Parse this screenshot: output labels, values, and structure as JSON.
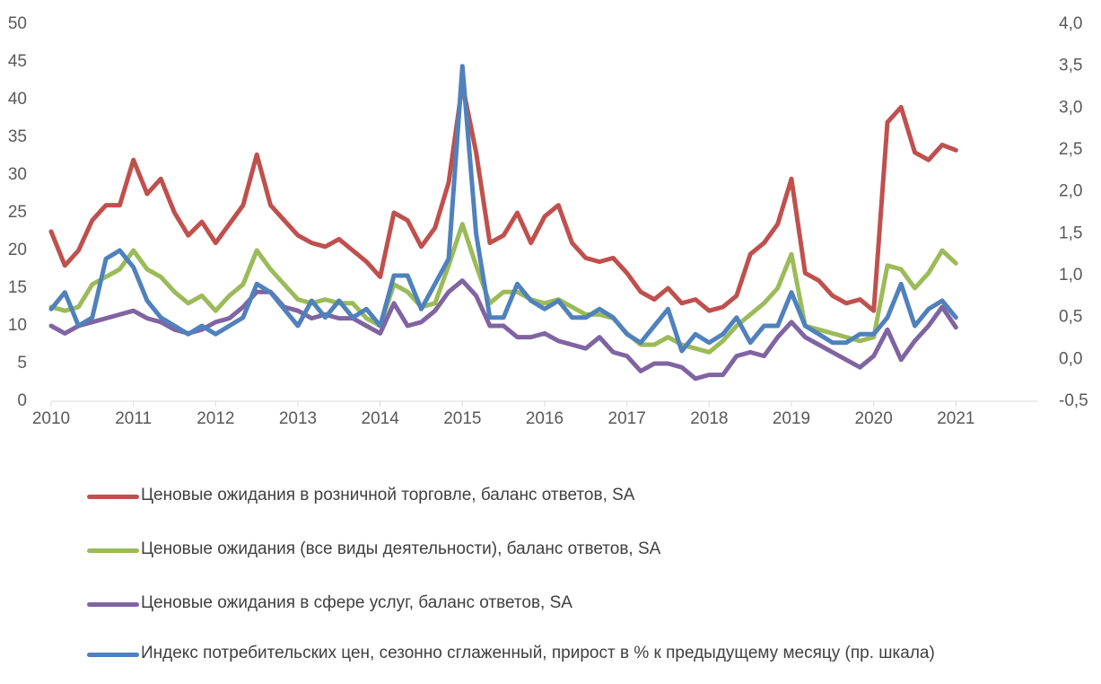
{
  "chart_data": {
    "type": "line",
    "x": [
      2010,
      2010.167,
      2010.333,
      2010.5,
      2010.667,
      2010.833,
      2011,
      2011.167,
      2011.333,
      2011.5,
      2011.667,
      2011.833,
      2012,
      2012.167,
      2012.333,
      2012.5,
      2012.667,
      2012.833,
      2013,
      2013.167,
      2013.333,
      2013.5,
      2013.667,
      2013.833,
      2014,
      2014.167,
      2014.333,
      2014.5,
      2014.667,
      2014.833,
      2015,
      2015.167,
      2015.333,
      2015.5,
      2015.667,
      2015.833,
      2016,
      2016.167,
      2016.333,
      2016.5,
      2016.667,
      2016.833,
      2017,
      2017.167,
      2017.333,
      2017.5,
      2017.667,
      2017.833,
      2018,
      2018.167,
      2018.333,
      2018.5,
      2018.667,
      2018.833,
      2019,
      2019.167,
      2019.333,
      2019.5,
      2019.667,
      2019.833,
      2020,
      2020.167,
      2020.333,
      2020.5,
      2020.667,
      2020.833,
      2021
    ],
    "xlim": [
      2010,
      2022
    ],
    "xticks": [
      2010,
      2011,
      2012,
      2013,
      2014,
      2015,
      2016,
      2017,
      2018,
      2019,
      2020,
      2021
    ],
    "ylim": [
      0,
      50
    ],
    "yticks": [
      0,
      5,
      10,
      15,
      20,
      25,
      30,
      35,
      40,
      45,
      50
    ],
    "y2lim": [
      -0.5,
      4.0
    ],
    "y2ticks": [
      {
        "value": -0.5,
        "label": "-0,5"
      },
      {
        "value": 0,
        "label": "0,0"
      },
      {
        "value": 0.5,
        "label": "0,5"
      },
      {
        "value": 1,
        "label": "1,0"
      },
      {
        "value": 1.5,
        "label": "1,5"
      },
      {
        "value": 2,
        "label": "2,0"
      },
      {
        "value": 2.5,
        "label": "2,5"
      },
      {
        "value": 3,
        "label": "3,0"
      },
      {
        "value": 3.5,
        "label": "3,5"
      },
      {
        "value": 4,
        "label": "4,0"
      }
    ],
    "series": [
      {
        "name": "Ценовые ожидания в розничной торговле, баланс ответов, SA",
        "color": "#c0504d",
        "values": [
          22.5,
          18,
          20,
          24,
          26,
          26,
          32,
          27.5,
          29.5,
          25,
          22,
          23.8,
          21,
          23.5,
          26,
          32.7,
          26,
          24,
          22,
          21,
          20.5,
          21.5,
          20,
          18.5,
          16.5,
          25,
          24,
          20.5,
          23,
          29,
          42,
          33,
          21,
          22,
          25,
          21,
          24.5,
          26,
          21,
          19,
          18.5,
          19,
          17,
          14.5,
          13.5,
          15,
          13,
          13.5,
          12,
          12.5,
          14,
          19.5,
          21,
          23.5,
          29.5,
          17,
          16,
          14,
          13,
          13.5,
          12,
          37,
          39,
          33,
          32,
          34,
          33.3
        ]
      },
      {
        "name": "Ценовые ожидания (все виды деятельности), баланс ответов, SA",
        "color": "#9bbb59",
        "values": [
          12.5,
          12,
          12.5,
          15.5,
          16.5,
          17.5,
          20,
          17.5,
          16.5,
          14.5,
          13,
          14,
          12,
          14,
          15.5,
          20,
          17.5,
          15.5,
          13.5,
          13,
          13.5,
          13,
          13,
          11,
          10,
          15.5,
          14.5,
          12.5,
          13,
          18,
          23.5,
          18,
          13,
          14.5,
          14.5,
          13.5,
          13,
          13.5,
          12.5,
          11.5,
          11.5,
          11,
          9,
          7.5,
          7.5,
          8.5,
          7.5,
          7,
          6.5,
          8,
          10,
          11.5,
          13,
          15,
          19.5,
          10,
          9.5,
          9,
          8.5,
          8,
          8.5,
          18,
          17.5,
          15,
          17,
          20,
          18.3
        ]
      },
      {
        "name": "Ценовые ожидания в сфере услуг, баланс ответов, SA",
        "color": "#8064a2",
        "values": [
          10,
          9,
          10,
          10.5,
          11,
          11.5,
          12,
          11,
          10.5,
          9.5,
          9,
          9.5,
          10.5,
          11,
          12.5,
          14.5,
          14.5,
          12.5,
          12,
          11,
          11.5,
          11,
          11,
          10,
          9,
          13,
          10,
          10.5,
          12,
          14.5,
          16,
          14,
          10,
          10,
          8.5,
          8.5,
          9,
          8,
          7.5,
          7,
          8.5,
          6.5,
          6,
          4,
          5,
          5,
          4.5,
          3,
          3.5,
          3.5,
          6,
          6.5,
          6,
          8.5,
          10.5,
          8.5,
          7.5,
          6.5,
          5.5,
          4.5,
          6,
          9.5,
          5.5,
          8,
          10,
          12.5,
          9.8
        ]
      },
      {
        "name": "Индекс потребительских цен, сезонно сглаженный, прирост в % к предыдущему месяцу (пр. шкала)",
        "color": "#4f81bd",
        "axis": "y2",
        "values": [
          0.6,
          0.8,
          0.4,
          0.5,
          1.2,
          1.3,
          1.1,
          0.7,
          0.5,
          0.4,
          0.3,
          0.4,
          0.3,
          0.4,
          0.5,
          0.9,
          0.8,
          0.6,
          0.4,
          0.7,
          0.5,
          0.7,
          0.5,
          0.6,
          0.4,
          1.0,
          1.0,
          0.6,
          0.9,
          1.2,
          3.5,
          1.5,
          0.5,
          0.5,
          0.9,
          0.7,
          0.6,
          0.7,
          0.5,
          0.5,
          0.6,
          0.5,
          0.3,
          0.2,
          0.4,
          0.6,
          0.1,
          0.3,
          0.2,
          0.3,
          0.5,
          0.2,
          0.4,
          0.4,
          0.8,
          0.4,
          0.3,
          0.2,
          0.2,
          0.3,
          0.3,
          0.5,
          0.9,
          0.4,
          0.6,
          0.7,
          0.5
        ]
      }
    ]
  }
}
